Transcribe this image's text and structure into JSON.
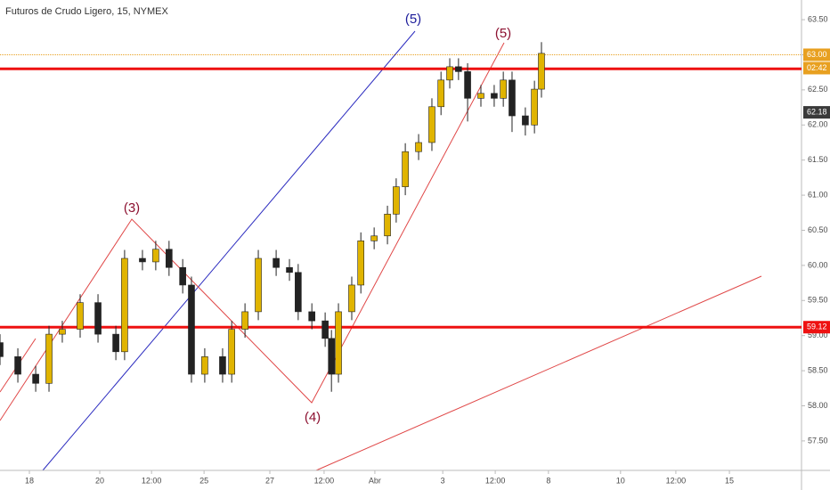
{
  "chart_data": {
    "type": "candlestick",
    "title": "Futuros de Crudo Ligero, 15, NYMEX",
    "xlim": [
      0,
      22.9
    ],
    "ylim": [
      57.08,
      63.78
    ],
    "xticks": [
      {
        "value": 0.84,
        "label": "18"
      },
      {
        "value": 2.85,
        "label": "20"
      },
      {
        "value": 4.33,
        "label": "12:00"
      },
      {
        "value": 5.83,
        "label": "25"
      },
      {
        "value": 7.71,
        "label": "27"
      },
      {
        "value": 9.26,
        "label": "12:00"
      },
      {
        "value": 10.71,
        "label": "Abr"
      },
      {
        "value": 12.65,
        "label": "3"
      },
      {
        "value": 14.15,
        "label": "12:00"
      },
      {
        "value": 15.67,
        "label": "8"
      },
      {
        "value": 17.73,
        "label": "10"
      },
      {
        "value": 19.31,
        "label": "12:00"
      },
      {
        "value": 20.84,
        "label": "15"
      }
    ],
    "yticks": [
      {
        "value": 57.5,
        "label": "57.50"
      },
      {
        "value": 58,
        "label": "58.00"
      },
      {
        "value": 58.5,
        "label": "58.50"
      },
      {
        "value": 59,
        "label": "59.00"
      },
      {
        "value": 59.5,
        "label": "59.50"
      },
      {
        "value": 60,
        "label": "60.00"
      },
      {
        "value": 60.5,
        "label": "60.50"
      },
      {
        "value": 61,
        "label": "61.00"
      },
      {
        "value": 61.5,
        "label": "61.50"
      },
      {
        "value": 62,
        "label": "62.00"
      },
      {
        "value": 62.5,
        "label": "62.50"
      },
      {
        "value": 63,
        "label": "63.00"
      },
      {
        "value": 63.5,
        "label": "63.50"
      }
    ],
    "up_color": "#e0b400",
    "down_color": "#222222",
    "candles": {
      "x": [
        0.0,
        0.51,
        1.02,
        1.4,
        1.78,
        2.29,
        2.8,
        3.31,
        3.56,
        4.07,
        4.45,
        4.83,
        5.22,
        5.47,
        5.85,
        6.36,
        6.62,
        7.0,
        7.38,
        7.89,
        8.27,
        8.52,
        8.91,
        9.29,
        9.47,
        9.67,
        10.05,
        10.31,
        10.69,
        11.07,
        11.32,
        11.58,
        11.96,
        12.34,
        12.6,
        12.85,
        13.1,
        13.36,
        13.74,
        14.12,
        14.38,
        14.63,
        15.01,
        15.27,
        15.47
      ],
      "open": [
        58.9,
        58.7,
        58.45,
        58.32,
        59.02,
        59.09,
        59.47,
        59.02,
        58.77,
        60.1,
        60.05,
        60.23,
        59.97,
        59.72,
        58.45,
        58.7,
        58.45,
        59.09,
        59.34,
        60.1,
        59.97,
        59.9,
        59.34,
        59.21,
        58.96,
        58.45,
        59.34,
        59.72,
        60.35,
        60.42,
        60.73,
        61.12,
        61.62,
        61.75,
        62.26,
        62.64,
        62.83,
        62.76,
        62.38,
        62.45,
        62.38,
        62.64,
        62.13,
        62.0,
        62.51
      ],
      "high": [
        59.02,
        58.82,
        58.57,
        59.14,
        59.21,
        59.59,
        59.59,
        59.14,
        60.22,
        60.22,
        60.35,
        60.35,
        60.09,
        59.84,
        58.82,
        58.82,
        59.21,
        59.46,
        60.22,
        60.22,
        60.09,
        60.02,
        59.46,
        59.33,
        59.08,
        59.46,
        59.84,
        60.47,
        60.54,
        60.85,
        61.24,
        61.74,
        61.87,
        62.38,
        62.76,
        62.95,
        62.95,
        62.88,
        62.57,
        62.57,
        62.76,
        62.76,
        62.25,
        62.63,
        63.18
      ],
      "low": [
        58.58,
        58.33,
        58.2,
        58.2,
        58.9,
        58.97,
        58.9,
        58.65,
        58.65,
        59.93,
        59.93,
        59.85,
        59.6,
        58.33,
        58.33,
        58.33,
        58.33,
        58.97,
        59.22,
        59.85,
        59.78,
        59.22,
        59.09,
        58.84,
        58.2,
        58.33,
        59.22,
        59.6,
        60.23,
        60.3,
        60.61,
        61.0,
        61.5,
        61.63,
        62.14,
        62.52,
        62.64,
        62.05,
        62.26,
        62.26,
        62.26,
        61.9,
        61.85,
        61.88,
        62.39
      ],
      "close": [
        58.7,
        58.45,
        58.32,
        59.02,
        59.09,
        59.47,
        59.02,
        58.77,
        60.1,
        60.05,
        60.23,
        59.97,
        59.72,
        58.45,
        58.7,
        58.45,
        59.09,
        59.34,
        60.1,
        59.97,
        59.9,
        59.34,
        59.21,
        58.96,
        58.45,
        59.34,
        59.72,
        60.35,
        60.42,
        60.73,
        61.12,
        61.62,
        61.75,
        62.26,
        62.64,
        62.83,
        62.76,
        62.38,
        62.45,
        62.38,
        62.64,
        62.13,
        62.0,
        62.51,
        63.02
      ]
    },
    "levels": [
      {
        "value": 62.8,
        "color": "#ee1111"
      },
      {
        "value": 59.12,
        "color": "#ee1111"
      },
      {
        "value": 63.0,
        "color": "#e8a020"
      }
    ],
    "price_labels": [
      {
        "value": 63.0,
        "label": "63.00",
        "color": "#e8a020"
      },
      {
        "value": 62.18,
        "label": "62.18",
        "color": "#3a3a3a"
      },
      {
        "value": 59.12,
        "label": "59.12",
        "color": "#ee1111"
      }
    ],
    "countdown": "02:42",
    "annotations": [
      "(5)",
      "(5)",
      "(3)",
      "(4)"
    ]
  }
}
